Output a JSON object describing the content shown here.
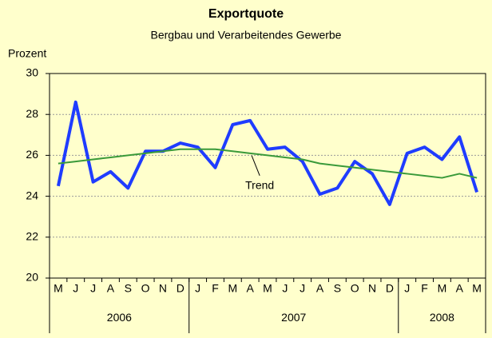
{
  "chart_data": {
    "type": "line",
    "title": "Exportquote",
    "subtitle": "Bergbau und Verarbeitendes Gewerbe",
    "y_label": "Prozent",
    "groups": [
      {
        "label": "2006",
        "categories": [
          "M",
          "J",
          "J",
          "A",
          "S",
          "O",
          "N",
          "D"
        ]
      },
      {
        "label": "2007",
        "categories": [
          "J",
          "F",
          "M",
          "A",
          "M",
          "J",
          "J",
          "A",
          "S",
          "O",
          "N",
          "D"
        ]
      },
      {
        "label": "2008",
        "categories": [
          "J",
          "F",
          "M",
          "A",
          "M"
        ]
      }
    ],
    "series": [
      {
        "name": "Exportquote",
        "color": "#1f3cff",
        "width": 4,
        "values": [
          24.5,
          28.6,
          24.7,
          25.2,
          24.4,
          26.2,
          26.2,
          26.6,
          26.4,
          25.4,
          27.5,
          27.7,
          26.3,
          26.4,
          25.7,
          24.1,
          24.4,
          25.7,
          25.1,
          23.6,
          26.1,
          26.4,
          25.8,
          26.9,
          24.2
        ]
      },
      {
        "name": "Trend",
        "color": "#3a9a3a",
        "width": 2,
        "values": [
          25.6,
          25.7,
          25.8,
          25.9,
          26.0,
          26.1,
          26.2,
          26.3,
          26.3,
          26.3,
          26.2,
          26.1,
          26.0,
          25.9,
          25.8,
          25.6,
          25.5,
          25.4,
          25.3,
          25.2,
          25.1,
          25.0,
          24.9,
          25.1,
          24.9
        ]
      }
    ],
    "annotations": [
      {
        "text": "Trend",
        "series": 1,
        "index": 11
      }
    ],
    "ylim": [
      20,
      30
    ],
    "yticks": [
      20,
      22,
      24,
      26,
      28,
      30
    ],
    "grid": true,
    "legend": false
  }
}
